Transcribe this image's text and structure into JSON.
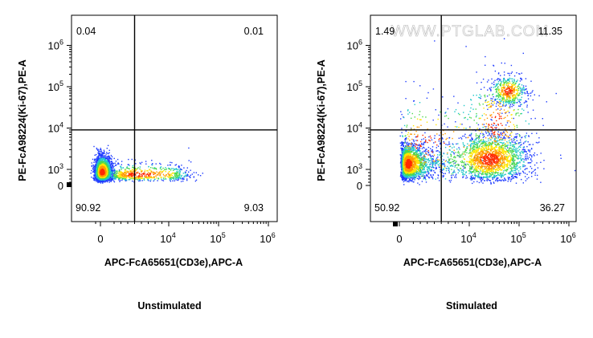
{
  "watermark": "WWW.PTGLAB.COM",
  "colors": {
    "density_low": "#1f3cff",
    "density_mid": "#20c8c8",
    "density_midhigh": "#4cd94c",
    "density_high": "#ffe600",
    "density_peak": "#ff2a00",
    "gate_line": "#000000",
    "frame": "#000000"
  },
  "chart_data": [
    {
      "type": "scatter",
      "subtype": "flow-cytometry-density-dot-plot",
      "title": "Unstimulated",
      "xlabel": "APC-FcA65651(CD3e),APC-A",
      "ylabel": "PE-FcA98224(Ki-67),PE-A",
      "x_scale": "biexponential",
      "y_scale": "biexponential",
      "x_ticks": [
        {
          "value": 0,
          "base": "0",
          "exp": ""
        },
        {
          "value": 10000,
          "base": "10",
          "exp": "4"
        },
        {
          "value": 100000,
          "base": "10",
          "exp": "5"
        },
        {
          "value": 1000000,
          "base": "10",
          "exp": "6"
        }
      ],
      "y_ticks": [
        {
          "value": 0,
          "base": "0",
          "exp": ""
        },
        {
          "value": 1000,
          "base": "10",
          "exp": "3"
        },
        {
          "value": 10000,
          "base": "10",
          "exp": "4"
        },
        {
          "value": 100000,
          "base": "10",
          "exp": "5"
        },
        {
          "value": 1000000,
          "base": "10",
          "exp": "6"
        }
      ],
      "gate": {
        "x": 5000,
        "y": 9000
      },
      "quadrants": {
        "upper_left": "0.04",
        "upper_right": "0.01",
        "lower_left": "90.92",
        "lower_right": "9.03"
      },
      "populations": [
        {
          "x": 200,
          "y": 850,
          "n": 2300,
          "sx": 0.1,
          "sy": 0.1
        },
        {
          "x": 5500,
          "y": 700,
          "n": 700,
          "sx": 0.17,
          "sy": 0.08
        }
      ]
    },
    {
      "type": "scatter",
      "subtype": "flow-cytometry-density-dot-plot",
      "title": "Stimulated",
      "xlabel": "APC-FcA65651(CD3e),APC-A",
      "ylabel": "PE-FcA98224(Ki-67),PE-A",
      "x_scale": "biexponential",
      "y_scale": "biexponential",
      "x_ticks": [
        {
          "value": 0,
          "base": "0",
          "exp": ""
        },
        {
          "value": 10000,
          "base": "10",
          "exp": "4"
        },
        {
          "value": 100000,
          "base": "10",
          "exp": "5"
        },
        {
          "value": 1000000,
          "base": "10",
          "exp": "6"
        }
      ],
      "y_ticks": [
        {
          "value": 0,
          "base": "0",
          "exp": ""
        },
        {
          "value": 1000,
          "base": "10",
          "exp": "3"
        },
        {
          "value": 10000,
          "base": "10",
          "exp": "4"
        },
        {
          "value": 100000,
          "base": "10",
          "exp": "5"
        },
        {
          "value": 1000000,
          "base": "10",
          "exp": "6"
        }
      ],
      "gate": {
        "x": 6000,
        "y": 9000
      },
      "quadrants": {
        "upper_left": "1.49",
        "upper_right": "11.35",
        "lower_left": "50.92",
        "lower_right": "36.27"
      },
      "populations": [
        {
          "x": 1200,
          "y": 1400,
          "n": 1800,
          "sx": 0.17,
          "sy": 0.12
        },
        {
          "x": 25000,
          "y": 1800,
          "n": 1900,
          "sx": 0.2,
          "sy": 0.15
        },
        {
          "x": 60000,
          "y": 80000,
          "n": 500,
          "sx": 0.09,
          "sy": 0.09
        },
        {
          "x": 35000,
          "y": 12000,
          "n": 350,
          "sx": 0.18,
          "sy": 0.32
        },
        {
          "x": 3500,
          "y": 4000,
          "n": 280,
          "sx": 0.3,
          "sy": 0.3
        }
      ]
    }
  ]
}
